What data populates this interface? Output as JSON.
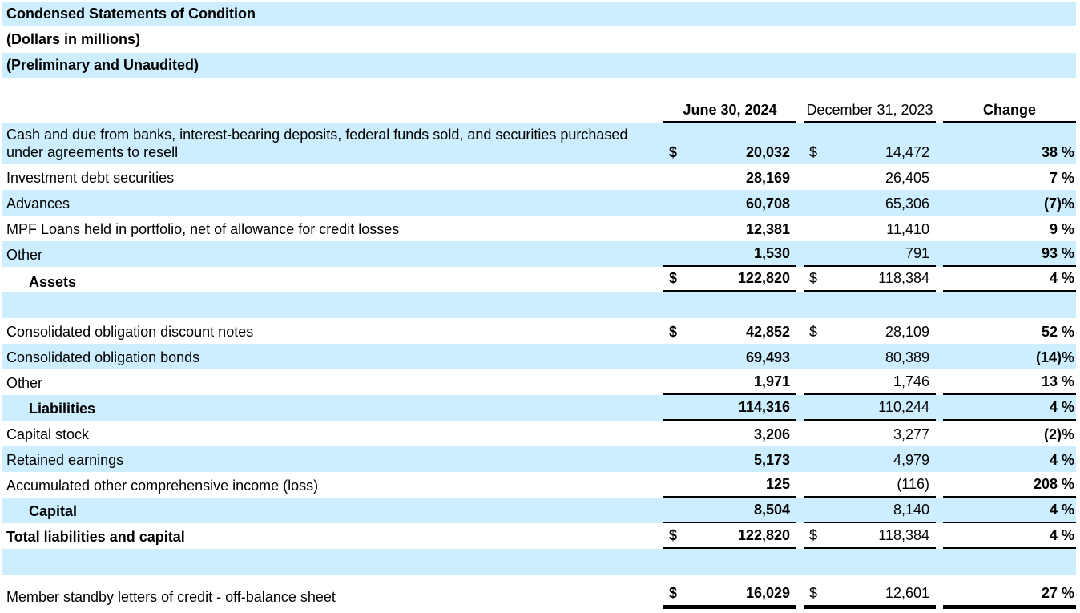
{
  "titles": [
    "Condensed Statements of Condition",
    "(Dollars in millions)",
    "(Preliminary and Unaudited)"
  ],
  "headers": {
    "col1": "June 30, 2024",
    "col2": "December 31, 2023",
    "col3": "Change"
  },
  "colors": {
    "shade": "#cceeff"
  },
  "rows": [
    {
      "label": "Cash and due from banks, interest-bearing deposits, federal funds sold, and securities purchased under agreements to resell",
      "v1": "20,032",
      "v2": "14,472",
      "v3": "38 %",
      "dollar": true,
      "shaded": true
    },
    {
      "label": "Investment debt securities",
      "v1": "28,169",
      "v2": "26,405",
      "v3": "7 %"
    },
    {
      "label": "Advances",
      "v1": "60,708",
      "v2": "65,306",
      "v3": "(7)%",
      "shaded": true
    },
    {
      "label": "MPF Loans held in portfolio, net of allowance for credit losses",
      "v1": "12,381",
      "v2": "11,410",
      "v3": "9 %"
    },
    {
      "label": "Other",
      "v1": "1,530",
      "v2": "791",
      "v3": "93 %",
      "shaded": true,
      "rule": "single"
    },
    {
      "label": "Assets",
      "v1": "122,820",
      "v2": "118,384",
      "v3": "4 %",
      "dollar": true,
      "bold": true,
      "indent": true,
      "rule": "double"
    },
    {
      "label": "",
      "v1": "",
      "v2": "",
      "v3": "",
      "shaded": true
    },
    {
      "label": "Consolidated obligation discount notes",
      "v1": "42,852",
      "v2": "28,109",
      "v3": "52 %",
      "dollar": true
    },
    {
      "label": "Consolidated obligation bonds",
      "v1": "69,493",
      "v2": "80,389",
      "v3": "(14)%",
      "shaded": true
    },
    {
      "label": "Other",
      "v1": "1,971",
      "v2": "1,746",
      "v3": "13 %",
      "rule": "single"
    },
    {
      "label": "Liabilities",
      "v1": "114,316",
      "v2": "110,244",
      "v3": "4 %",
      "bold": true,
      "indent": true,
      "shaded": true,
      "rule": "single"
    },
    {
      "label": "Capital stock",
      "v1": "3,206",
      "v2": "3,277",
      "v3": "(2)%"
    },
    {
      "label": "Retained earnings",
      "v1": "5,173",
      "v2": "4,979",
      "v3": "4 %",
      "shaded": true
    },
    {
      "label": "Accumulated other comprehensive income (loss)",
      "v1": "125",
      "v2": "(116)",
      "v3": "208 %",
      "rule": "single"
    },
    {
      "label": "Capital",
      "v1": "8,504",
      "v2": "8,140",
      "v3": "4 %",
      "bold": true,
      "indent": true,
      "shaded": true,
      "rule": "single"
    },
    {
      "label": "Total liabilities and capital",
      "v1": "122,820",
      "v2": "118,384",
      "v3": "4 %",
      "dollar": true,
      "bold": true,
      "rule": "single"
    },
    {
      "label": "",
      "v1": "",
      "v2": "",
      "v3": "",
      "shaded": true
    },
    {
      "label": "Member standby letters of credit - off-balance sheet",
      "v1": "16,029",
      "v2": "12,601",
      "v3": "27 %",
      "dollar": true,
      "rule": "double"
    }
  ],
  "dollar_sign": "$"
}
